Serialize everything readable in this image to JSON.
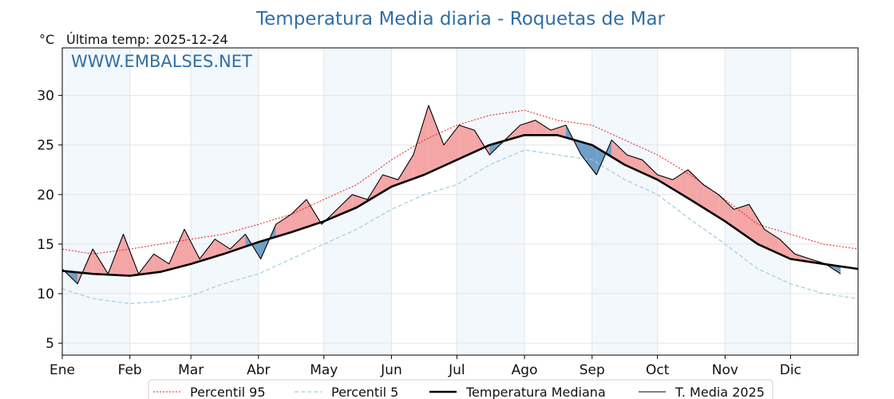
{
  "title": "Temperatura Media diaria - Roquetas de Mar",
  "unit_label": "°C",
  "last_temp_label": "Última temp: 2025-12-24",
  "watermark": "WWW.EMBALSES.NET",
  "chart_data": {
    "type": "line",
    "title": "Temperatura Media diaria - Roquetas de Mar",
    "xlabel": "",
    "ylabel": "°C",
    "ylim": [
      3.8,
      34.8
    ],
    "xlim": [
      1,
      366
    ],
    "x_ticks": [
      {
        "label": "Ene",
        "day": 1
      },
      {
        "label": "Feb",
        "day": 32
      },
      {
        "label": "Mar",
        "day": 60
      },
      {
        "label": "Abr",
        "day": 91
      },
      {
        "label": "May",
        "day": 121
      },
      {
        "label": "Jun",
        "day": 152
      },
      {
        "label": "Jul",
        "day": 182
      },
      {
        "label": "Ago",
        "day": 213
      },
      {
        "label": "Sep",
        "day": 244
      },
      {
        "label": "Oct",
        "day": 274
      },
      {
        "label": "Nov",
        "day": 305
      },
      {
        "label": "Dic",
        "day": 335
      }
    ],
    "y_ticks": [
      5,
      10,
      15,
      20,
      25,
      30
    ],
    "grid": true,
    "legend_position": "bottom",
    "series": [
      {
        "name": "Percentil 95",
        "color": "#e8191c",
        "style": "dotted",
        "x": [
          1,
          15,
          32,
          46,
          60,
          75,
          91,
          106,
          121,
          136,
          152,
          167,
          182,
          197,
          213,
          228,
          244,
          259,
          274,
          289,
          305,
          320,
          335,
          350,
          366
        ],
        "y": [
          14.5,
          14.0,
          14.5,
          15.0,
          15.5,
          16.0,
          17.0,
          18.0,
          19.5,
          21.0,
          23.5,
          25.5,
          27.0,
          28.0,
          28.5,
          27.5,
          27.0,
          25.5,
          24.0,
          22.0,
          19.5,
          17.0,
          16.0,
          15.0,
          14.5
        ]
      },
      {
        "name": "Percentil 5",
        "color": "#9fcde0",
        "style": "dashed",
        "x": [
          1,
          15,
          32,
          46,
          60,
          75,
          91,
          106,
          121,
          136,
          152,
          167,
          182,
          197,
          213,
          228,
          244,
          259,
          274,
          289,
          305,
          320,
          335,
          350,
          366
        ],
        "y": [
          10.5,
          9.5,
          9.0,
          9.2,
          9.8,
          11.0,
          12.0,
          13.5,
          15.0,
          16.5,
          18.5,
          20.0,
          21.0,
          23.0,
          24.5,
          24.0,
          23.5,
          21.5,
          20.0,
          17.5,
          15.0,
          12.5,
          11.0,
          10.0,
          9.5
        ]
      },
      {
        "name": "Temperatura Mediana",
        "color": "#000000",
        "style": "thick",
        "x": [
          1,
          15,
          32,
          46,
          60,
          75,
          91,
          106,
          121,
          136,
          152,
          167,
          182,
          197,
          213,
          228,
          244,
          259,
          274,
          289,
          305,
          320,
          335,
          350,
          366
        ],
        "y": [
          12.3,
          12.0,
          11.8,
          12.2,
          13.0,
          14.0,
          15.2,
          16.2,
          17.3,
          18.7,
          20.8,
          22.0,
          23.5,
          25.0,
          26.0,
          26.0,
          25.0,
          23.0,
          21.5,
          19.5,
          17.3,
          15.0,
          13.5,
          13.0,
          12.5
        ]
      },
      {
        "name": "T. Media 2025",
        "color": "#000000",
        "style": "thin",
        "x": [
          1,
          8,
          15,
          22,
          29,
          36,
          43,
          50,
          57,
          64,
          71,
          78,
          85,
          92,
          99,
          106,
          113,
          120,
          127,
          134,
          141,
          148,
          155,
          162,
          169,
          176,
          183,
          190,
          197,
          204,
          211,
          218,
          225,
          232,
          239,
          246,
          253,
          260,
          267,
          274,
          281,
          288,
          295,
          302,
          309,
          316,
          323,
          330,
          337,
          344,
          351,
          358
        ],
        "y": [
          12.5,
          11.0,
          14.5,
          12.0,
          16.0,
          12.0,
          14.0,
          13.0,
          16.5,
          13.5,
          15.5,
          14.5,
          16.0,
          13.5,
          17.0,
          18.0,
          19.5,
          17.0,
          18.5,
          20.0,
          19.5,
          22.0,
          21.5,
          24.0,
          29.0,
          25.0,
          27.0,
          26.5,
          24.0,
          25.5,
          27.0,
          27.5,
          26.5,
          27.0,
          24.0,
          22.0,
          25.5,
          24.0,
          23.5,
          22.0,
          21.5,
          22.5,
          21.0,
          20.0,
          18.5,
          19.0,
          16.5,
          15.5,
          14.0,
          13.5,
          13.0,
          12.0
        ]
      }
    ]
  },
  "legend": [
    {
      "label": "Percentil 95",
      "color": "#e8191c",
      "style": "dotted"
    },
    {
      "label": "Percentil 5",
      "color": "#9fcde0",
      "style": "dashed"
    },
    {
      "label": "Temperatura Mediana",
      "color": "#000000",
      "style": "thick"
    },
    {
      "label": "T. Media 2025",
      "color": "#000000",
      "style": "thin"
    }
  ],
  "colors": {
    "above_median_fill": "#f4a6a6",
    "below_median_fill": "#6f9fc8",
    "month_band": "#f3f8fc",
    "grid": "#e4e4e4"
  }
}
